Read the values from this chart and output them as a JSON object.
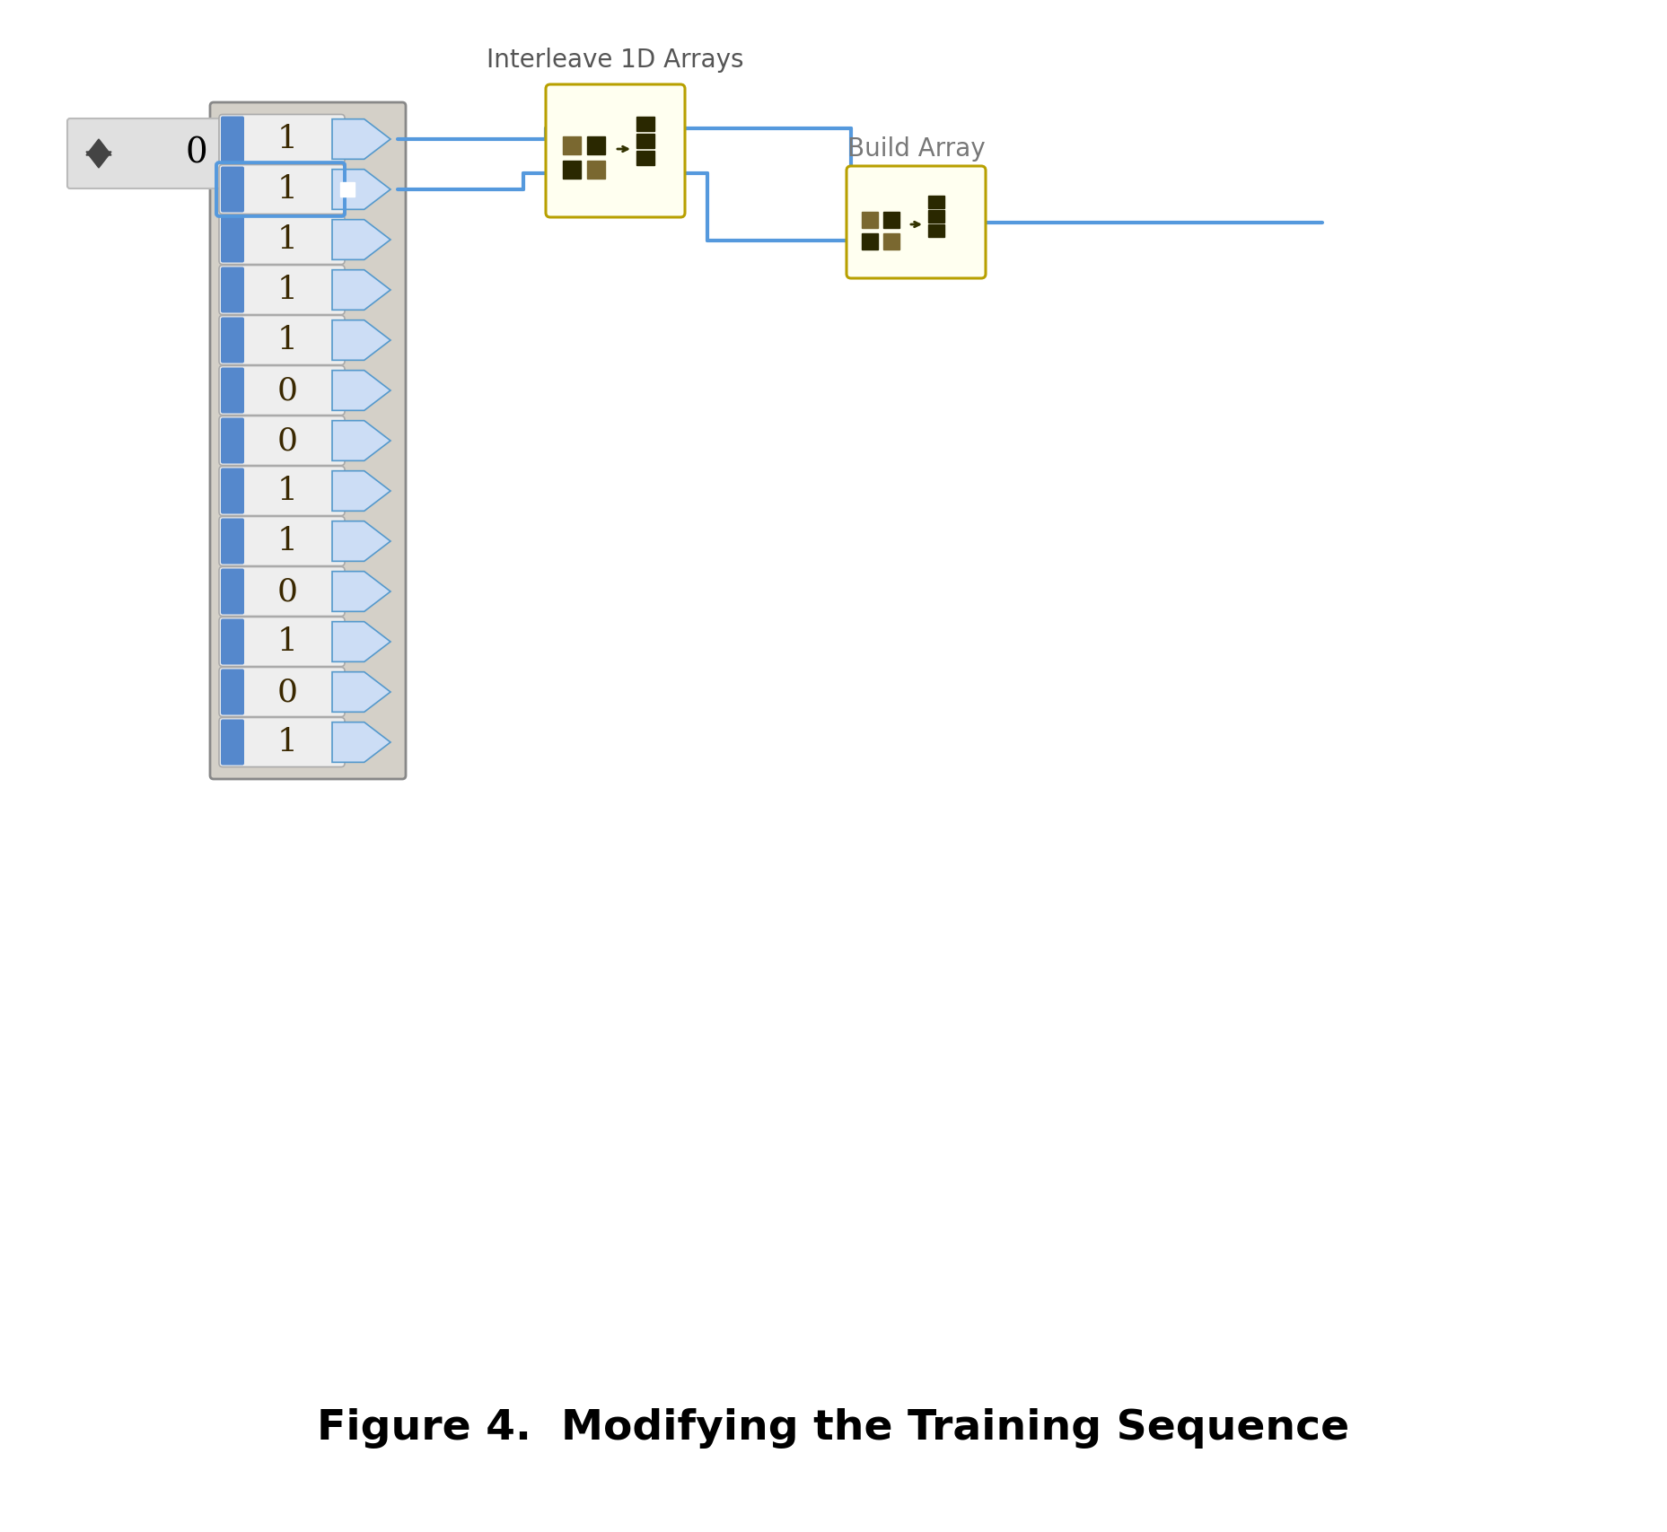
{
  "title": "Figure 4.  Modifying the Training Sequence",
  "array_values": [
    1,
    1,
    1,
    1,
    1,
    0,
    0,
    1,
    1,
    0,
    1,
    0,
    1
  ],
  "interleave_label": "Interleave 1D Arrays",
  "build_label": "Build Array",
  "numeric_ctrl_value": "0",
  "bg_color": "#ffffff",
  "array_block_bg": "#d4d0c8",
  "cell_bg": "#eeeeee",
  "blue_tab": "#5588cc",
  "wire_color": "#5599dd",
  "interleave_block_bg": "#fffff0",
  "interleave_block_border": "#b8a000",
  "build_block_bg": "#fffff0",
  "build_block_border": "#b8a000",
  "numeric_ctrl_bg": "#e0e0e0",
  "title_fontsize": 34,
  "label_fontsize": 20,
  "cell_fontsize": 26
}
